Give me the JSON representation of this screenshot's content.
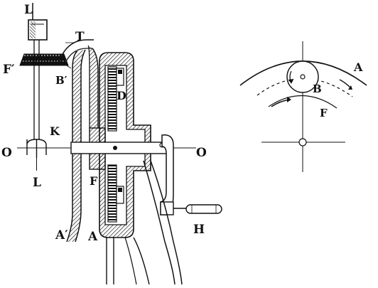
{
  "figure": {
    "labels": {
      "L_top": "L",
      "T": "T",
      "F_prime": "F′",
      "B_prime": "B′",
      "D": "D",
      "K": "K",
      "O_left": "O",
      "O_right": "O",
      "L_bottom": "L",
      "F": "F",
      "A_prime": "A′",
      "A": "A",
      "H": "H"
    },
    "detail": {
      "labels": {
        "A": "A",
        "B": "B",
        "F": "F"
      }
    }
  }
}
